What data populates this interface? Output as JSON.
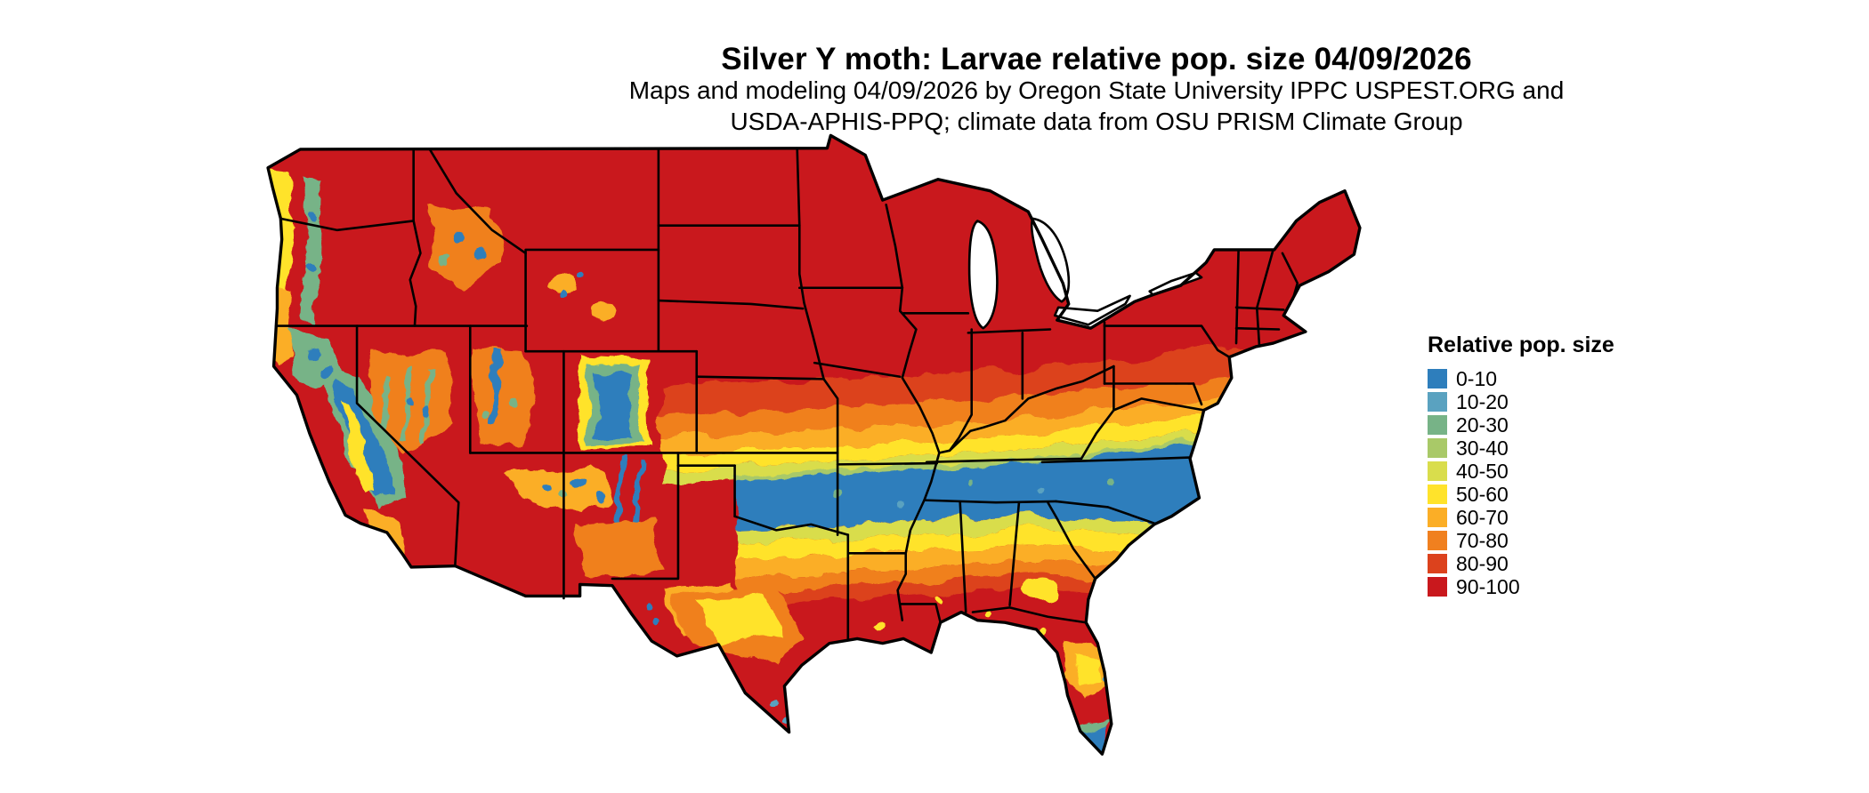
{
  "header": {
    "title": "Silver Y moth: Larvae relative pop. size 04/09/2026",
    "subtitle_line1": "Maps and modeling 04/09/2026 by Oregon State University IPPC USPEST.ORG and",
    "subtitle_line2": "USDA-APHIS-PPQ; climate data from OSU PRISM Climate Group"
  },
  "legend": {
    "title": "Relative pop. size",
    "bins": [
      {
        "label": "0-10",
        "color": "#2e7ebc"
      },
      {
        "label": "10-20",
        "color": "#5aa2c0"
      },
      {
        "label": "20-30",
        "color": "#77b387"
      },
      {
        "label": "30-40",
        "color": "#a9c968"
      },
      {
        "label": "40-50",
        "color": "#d9dd4c"
      },
      {
        "label": "50-60",
        "color": "#ffe32b"
      },
      {
        "label": "60-70",
        "color": "#fbae26"
      },
      {
        "label": "70-80",
        "color": "#f0801f"
      },
      {
        "label": "80-90",
        "color": "#dc421d"
      },
      {
        "label": "90-100",
        "color": "#c9181d"
      }
    ]
  },
  "map": {
    "type": "raster choropleth",
    "region": "contiguous United States with state borders",
    "border_color": "#000000",
    "lake_color": "#ffffff",
    "background": "#ffffff",
    "visible_pattern": [
      "northern states and New England mostly 90-100 (red)",
      "transition band of 80-90 to 40-50 across central plains and Ohio valley",
      "broad 0-10 (blue) band from Oklahoma/Kansas through Tennessee/Kentucky to Virginia coast",
      "second 40-50 to 90-100 gradient south of the blue band",
      "Texas and Gulf states mostly 90-100 with yellow/orange patches",
      "mountain West mottled: blue/green along Sierra Nevada, Cascades, Rockies; red basins",
      "south Florida tip 0-30 (blue/green)"
    ]
  }
}
